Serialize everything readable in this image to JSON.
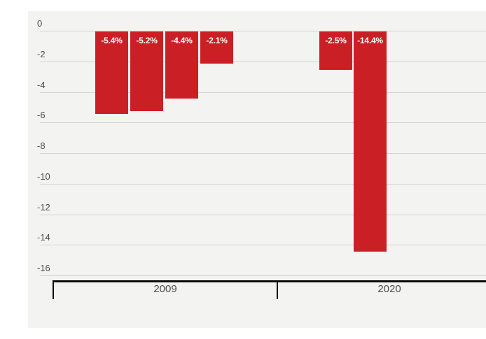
{
  "chart_data": {
    "type": "bar",
    "title": "",
    "orientation": "vertical",
    "value_unit": "%",
    "categories": [
      "2009",
      "2020"
    ],
    "groups": [
      {
        "label": "2009",
        "bars": [
          {
            "label": "-5.4%",
            "value": -5.4
          },
          {
            "label": "-5.2%",
            "value": -5.2
          },
          {
            "label": "-4.4%",
            "value": -4.4
          },
          {
            "label": "-2.1%",
            "value": -2.1
          }
        ]
      },
      {
        "label": "2020",
        "bars": [
          {
            "label": "-2.5%",
            "value": -2.5
          },
          {
            "label": "-14.4%",
            "value": -14.4
          }
        ]
      }
    ],
    "y_ticks": [
      {
        "label": "0",
        "value": 0
      },
      {
        "label": "-2",
        "value": -2
      },
      {
        "label": "-4",
        "value": -4
      },
      {
        "label": "-6",
        "value": -6
      },
      {
        "label": "-8",
        "value": -8
      },
      {
        "label": "-10",
        "value": -10
      },
      {
        "label": "-12",
        "value": -12
      },
      {
        "label": "-14",
        "value": -14
      },
      {
        "label": "-16",
        "value": -16
      }
    ],
    "ylim": [
      -16,
      0
    ],
    "grid": true,
    "legend": "none",
    "colors": {
      "bar": "#cb1f26",
      "bar_label": "#ffffff",
      "axis": "#0a0a0a",
      "tick_label": "#4d4d4d",
      "gridline": "#d3d3d1",
      "background": "#f3f3f2"
    }
  }
}
